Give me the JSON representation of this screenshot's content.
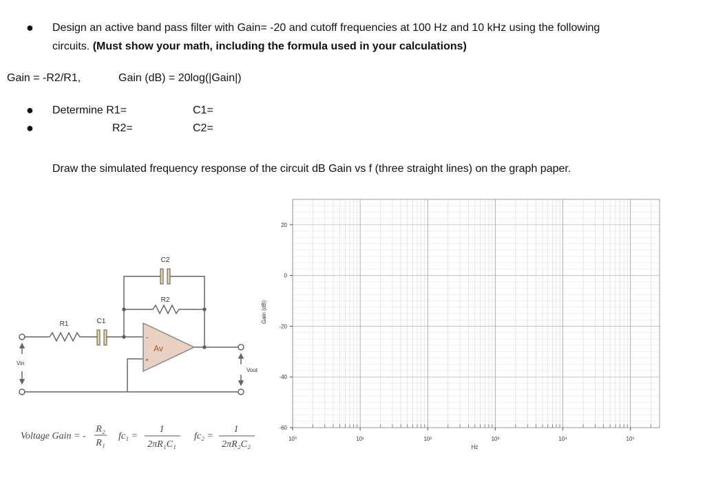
{
  "question": {
    "line1": "Design an active band pass filter with Gain= -20 and cutoff frequencies at 100 Hz and 10 kHz using the following",
    "line2": "circuits.",
    "bold": "(Must show your math, including the formula used in your calculations)",
    "gain_formula": "Gain = -R2/R1,",
    "db_formula": "Gain (dB) = 20log(|Gain|)",
    "determine_r1": "Determine R1=",
    "c1": "C1=",
    "r2": "R2=",
    "c2": "C2=",
    "draw": "Draw the simulated frequency response of the circuit dB Gain vs f (three straight lines) on the graph paper."
  },
  "circuit": {
    "c2": "C2",
    "r2": "R2",
    "r1": "R1",
    "c1": "C1",
    "amp": "Av",
    "minus": "-",
    "plus": "+",
    "vin": "Vin",
    "vout": "Vout"
  },
  "formula": {
    "gain_label": "Voltage Gain = -",
    "gain_num": "R₂",
    "gain_den": "R₁",
    "fc1_label": "fc₁ =",
    "fc1_num": "1",
    "fc1_den": "2πR₁C₁",
    "fc2_label": "fc₂ =",
    "fc2_num": "1",
    "fc2_den": "2πR₂C₂"
  },
  "graph": {
    "y_label": "Gain (dB)",
    "x_label": "Hz",
    "xlim": [
      1,
      270000
    ],
    "ylim": [
      -60,
      30
    ],
    "yticks": [
      20,
      0,
      -20,
      -40,
      -60
    ],
    "xticks": [
      {
        "value": 1,
        "label": "10⁰"
      },
      {
        "value": 10,
        "label": "10¹"
      },
      {
        "value": 100,
        "label": "10²"
      },
      {
        "value": 1000,
        "label": "10³"
      },
      {
        "value": 10000,
        "label": "10⁴"
      },
      {
        "value": 100000,
        "label": "10⁵"
      }
    ]
  }
}
